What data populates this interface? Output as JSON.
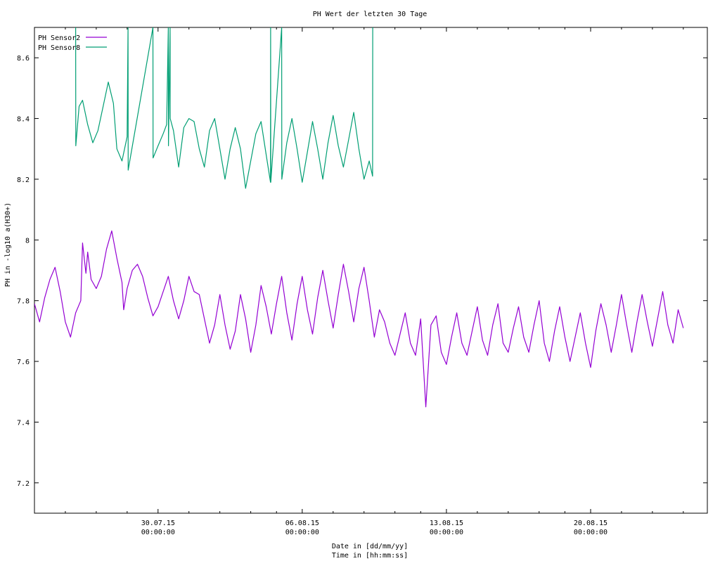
{
  "chart_data": {
    "type": "line",
    "title": "PH Wert der letzten 30 Tage",
    "xlabel_line1": "Date in [dd/mm/yy]",
    "xlabel_line2": "Time in [hh:mm:ss]",
    "ylabel": "PH in -log10 a(H30+)",
    "ylim": [
      7.1,
      8.7
    ],
    "xlim": [
      "2015-07-24 00:00",
      "2015-08-25 16:00"
    ],
    "y_ticks": [
      {
        "value": 7.2,
        "label": "7.2"
      },
      {
        "value": 7.4,
        "label": "7.4"
      },
      {
        "value": 7.6,
        "label": "7.6"
      },
      {
        "value": 7.8,
        "label": "7.8"
      },
      {
        "value": 8.0,
        "label": "8"
      },
      {
        "value": 8.2,
        "label": "8.2"
      },
      {
        "value": 8.4,
        "label": "8.4"
      },
      {
        "value": 8.6,
        "label": "8.6"
      }
    ],
    "x_ticks": [
      {
        "value": "2015-07-30 00:00",
        "date": "30.07.15",
        "time": "00:00:00"
      },
      {
        "value": "2015-08-06 00:00",
        "date": "06.08.15",
        "time": "00:00:00"
      },
      {
        "value": "2015-08-13 00:00",
        "date": "13.08.15",
        "time": "00:00:00"
      },
      {
        "value": "2015-08-20 00:00",
        "date": "20.08.15",
        "time": "00:00:00"
      }
    ],
    "x_minor_ticks": [
      "2015-07-25 12:00",
      "2015-07-27 00:00",
      "2015-07-28 12:00",
      "2015-07-31 12:00",
      "2015-08-02 00:00",
      "2015-08-03 12:00",
      "2015-08-04 18:00",
      "2015-08-07 12:00",
      "2015-08-09 00:00",
      "2015-08-10 12:00",
      "2015-08-11 18:00",
      "2015-08-14 12:00",
      "2015-08-16 00:00",
      "2015-08-17 12:00",
      "2015-08-18 18:00",
      "2015-08-21 12:00",
      "2015-08-23 00:00",
      "2015-08-24 12:00"
    ],
    "legend_position": "top-left",
    "grid": false,
    "series": [
      {
        "name": "PH Sensor2",
        "color": "#9400d3",
        "points": [
          [
            "2015-07-24 00:00",
            7.79
          ],
          [
            "2015-07-24 06:00",
            7.73
          ],
          [
            "2015-07-24 12:00",
            7.81
          ],
          [
            "2015-07-24 18:00",
            7.87
          ],
          [
            "2015-07-25 00:00",
            7.91
          ],
          [
            "2015-07-25 06:00",
            7.83
          ],
          [
            "2015-07-25 12:00",
            7.73
          ],
          [
            "2015-07-25 18:00",
            7.68
          ],
          [
            "2015-07-26 00:00",
            7.76
          ],
          [
            "2015-07-26 06:00",
            7.8
          ],
          [
            "2015-07-26 08:00",
            7.99
          ],
          [
            "2015-07-26 12:00",
            7.89
          ],
          [
            "2015-07-26 14:00",
            7.96
          ],
          [
            "2015-07-26 18:00",
            7.87
          ],
          [
            "2015-07-27 00:00",
            7.84
          ],
          [
            "2015-07-27 06:00",
            7.88
          ],
          [
            "2015-07-27 12:00",
            7.97
          ],
          [
            "2015-07-27 18:00",
            8.03
          ],
          [
            "2015-07-28 00:00",
            7.94
          ],
          [
            "2015-07-28 06:00",
            7.86
          ],
          [
            "2015-07-28 08:00",
            7.77
          ],
          [
            "2015-07-28 12:00",
            7.84
          ],
          [
            "2015-07-28 18:00",
            7.9
          ],
          [
            "2015-07-29 00:00",
            7.92
          ],
          [
            "2015-07-29 06:00",
            7.88
          ],
          [
            "2015-07-29 12:00",
            7.81
          ],
          [
            "2015-07-29 18:00",
            7.75
          ],
          [
            "2015-07-30 00:00",
            7.78
          ],
          [
            "2015-07-30 06:00",
            7.83
          ],
          [
            "2015-07-30 12:00",
            7.88
          ],
          [
            "2015-07-30 18:00",
            7.8
          ],
          [
            "2015-07-31 00:00",
            7.74
          ],
          [
            "2015-07-31 06:00",
            7.8
          ],
          [
            "2015-07-31 12:00",
            7.88
          ],
          [
            "2015-07-31 18:00",
            7.83
          ],
          [
            "2015-08-01 00:00",
            7.82
          ],
          [
            "2015-08-01 06:00",
            7.74
          ],
          [
            "2015-08-01 12:00",
            7.66
          ],
          [
            "2015-08-01 18:00",
            7.72
          ],
          [
            "2015-08-02 00:00",
            7.82
          ],
          [
            "2015-08-02 06:00",
            7.72
          ],
          [
            "2015-08-02 12:00",
            7.64
          ],
          [
            "2015-08-02 18:00",
            7.7
          ],
          [
            "2015-08-03 00:00",
            7.82
          ],
          [
            "2015-08-03 06:00",
            7.74
          ],
          [
            "2015-08-03 12:00",
            7.63
          ],
          [
            "2015-08-03 18:00",
            7.72
          ],
          [
            "2015-08-04 00:00",
            7.85
          ],
          [
            "2015-08-04 06:00",
            7.78
          ],
          [
            "2015-08-04 12:00",
            7.69
          ],
          [
            "2015-08-04 18:00",
            7.79
          ],
          [
            "2015-08-05 00:00",
            7.88
          ],
          [
            "2015-08-05 06:00",
            7.76
          ],
          [
            "2015-08-05 12:00",
            7.67
          ],
          [
            "2015-08-05 18:00",
            7.79
          ],
          [
            "2015-08-06 00:00",
            7.88
          ],
          [
            "2015-08-06 06:00",
            7.77
          ],
          [
            "2015-08-06 12:00",
            7.69
          ],
          [
            "2015-08-06 18:00",
            7.81
          ],
          [
            "2015-08-07 00:00",
            7.9
          ],
          [
            "2015-08-07 06:00",
            7.8
          ],
          [
            "2015-08-07 12:00",
            7.71
          ],
          [
            "2015-08-07 18:00",
            7.82
          ],
          [
            "2015-08-08 00:00",
            7.92
          ],
          [
            "2015-08-08 06:00",
            7.83
          ],
          [
            "2015-08-08 12:00",
            7.73
          ],
          [
            "2015-08-08 18:00",
            7.84
          ],
          [
            "2015-08-09 00:00",
            7.91
          ],
          [
            "2015-08-09 06:00",
            7.8
          ],
          [
            "2015-08-09 12:00",
            7.68
          ],
          [
            "2015-08-09 18:00",
            7.77
          ],
          [
            "2015-08-10 00:00",
            7.73
          ],
          [
            "2015-08-10 06:00",
            7.66
          ],
          [
            "2015-08-10 12:00",
            7.62
          ],
          [
            "2015-08-10 18:00",
            7.69
          ],
          [
            "2015-08-11 00:00",
            7.76
          ],
          [
            "2015-08-11 06:00",
            7.66
          ],
          [
            "2015-08-11 12:00",
            7.62
          ],
          [
            "2015-08-11 18:00",
            7.74
          ],
          [
            "2015-08-12 00:00",
            7.45
          ],
          [
            "2015-08-12 06:00",
            7.72
          ],
          [
            "2015-08-12 12:00",
            7.75
          ],
          [
            "2015-08-12 18:00",
            7.63
          ],
          [
            "2015-08-13 00:00",
            7.59
          ],
          [
            "2015-08-13 06:00",
            7.68
          ],
          [
            "2015-08-13 12:00",
            7.76
          ],
          [
            "2015-08-13 18:00",
            7.66
          ],
          [
            "2015-08-14 00:00",
            7.62
          ],
          [
            "2015-08-14 06:00",
            7.7
          ],
          [
            "2015-08-14 12:00",
            7.78
          ],
          [
            "2015-08-14 18:00",
            7.67
          ],
          [
            "2015-08-15 00:00",
            7.62
          ],
          [
            "2015-08-15 06:00",
            7.72
          ],
          [
            "2015-08-15 12:00",
            7.79
          ],
          [
            "2015-08-15 18:00",
            7.66
          ],
          [
            "2015-08-16 00:00",
            7.63
          ],
          [
            "2015-08-16 06:00",
            7.71
          ],
          [
            "2015-08-16 12:00",
            7.78
          ],
          [
            "2015-08-16 18:00",
            7.68
          ],
          [
            "2015-08-17 00:00",
            7.63
          ],
          [
            "2015-08-17 06:00",
            7.72
          ],
          [
            "2015-08-17 12:00",
            7.8
          ],
          [
            "2015-08-17 18:00",
            7.66
          ],
          [
            "2015-08-18 00:00",
            7.6
          ],
          [
            "2015-08-18 06:00",
            7.7
          ],
          [
            "2015-08-18 12:00",
            7.78
          ],
          [
            "2015-08-18 18:00",
            7.68
          ],
          [
            "2015-08-19 00:00",
            7.6
          ],
          [
            "2015-08-19 06:00",
            7.68
          ],
          [
            "2015-08-19 12:00",
            7.76
          ],
          [
            "2015-08-19 18:00",
            7.66
          ],
          [
            "2015-08-20 00:00",
            7.58
          ],
          [
            "2015-08-20 06:00",
            7.7
          ],
          [
            "2015-08-20 12:00",
            7.79
          ],
          [
            "2015-08-20 18:00",
            7.72
          ],
          [
            "2015-08-21 00:00",
            7.63
          ],
          [
            "2015-08-21 06:00",
            7.72
          ],
          [
            "2015-08-21 12:00",
            7.82
          ],
          [
            "2015-08-21 18:00",
            7.72
          ],
          [
            "2015-08-22 00:00",
            7.63
          ],
          [
            "2015-08-22 06:00",
            7.73
          ],
          [
            "2015-08-22 12:00",
            7.82
          ],
          [
            "2015-08-22 18:00",
            7.73
          ],
          [
            "2015-08-23 00:00",
            7.65
          ],
          [
            "2015-08-23 06:00",
            7.74
          ],
          [
            "2015-08-23 12:00",
            7.83
          ],
          [
            "2015-08-23 18:00",
            7.72
          ],
          [
            "2015-08-24 00:00",
            7.66
          ],
          [
            "2015-08-24 06:00",
            7.77
          ],
          [
            "2015-08-24 12:00",
            7.71
          ]
        ]
      },
      {
        "name": "PH Sensor8",
        "color": "#009e73",
        "points": [
          [
            "2015-07-26 00:00",
            8.7
          ],
          [
            "2015-07-26 00:10",
            8.31
          ],
          [
            "2015-07-26 04:00",
            8.44
          ],
          [
            "2015-07-26 08:00",
            8.46
          ],
          [
            "2015-07-26 14:00",
            8.38
          ],
          [
            "2015-07-26 20:00",
            8.32
          ],
          [
            "2015-07-27 02:00",
            8.36
          ],
          [
            "2015-07-27 08:00",
            8.44
          ],
          [
            "2015-07-27 14:00",
            8.52
          ],
          [
            "2015-07-27 20:00",
            8.45
          ],
          [
            "2015-07-28 00:00",
            8.3
          ],
          [
            "2015-07-28 06:00",
            8.26
          ],
          [
            "2015-07-28 12:00",
            8.34
          ],
          [
            "2015-07-28 13:00",
            8.7
          ],
          [
            "2015-07-28 13:10",
            8.23
          ],
          [
            "2015-07-29 18:00",
            8.7
          ],
          [
            "2015-07-29 18:10",
            8.27
          ],
          [
            "2015-07-30 00:00",
            8.31
          ],
          [
            "2015-07-30 06:00",
            8.35
          ],
          [
            "2015-07-30 10:00",
            8.38
          ],
          [
            "2015-07-30 12:00",
            8.7
          ],
          [
            "2015-07-30 12:10",
            8.31
          ],
          [
            "2015-07-30 14:00",
            8.7
          ],
          [
            "2015-07-30 14:10",
            8.4
          ],
          [
            "2015-07-30 18:00",
            8.36
          ],
          [
            "2015-07-31 00:00",
            8.24
          ],
          [
            "2015-07-31 06:00",
            8.37
          ],
          [
            "2015-07-31 12:00",
            8.4
          ],
          [
            "2015-07-31 18:00",
            8.39
          ],
          [
            "2015-08-01 00:00",
            8.3
          ],
          [
            "2015-08-01 06:00",
            8.24
          ],
          [
            "2015-08-01 12:00",
            8.36
          ],
          [
            "2015-08-01 18:00",
            8.4
          ],
          [
            "2015-08-02 00:00",
            8.3
          ],
          [
            "2015-08-02 06:00",
            8.2
          ],
          [
            "2015-08-02 12:00",
            8.3
          ],
          [
            "2015-08-02 18:00",
            8.37
          ],
          [
            "2015-08-03 00:00",
            8.3
          ],
          [
            "2015-08-03 06:00",
            8.17
          ],
          [
            "2015-08-03 12:00",
            8.26
          ],
          [
            "2015-08-03 18:00",
            8.35
          ],
          [
            "2015-08-04 00:00",
            8.39
          ],
          [
            "2015-08-04 06:00",
            8.28
          ],
          [
            "2015-08-04 11:00",
            8.19
          ],
          [
            "2015-08-04 11:10",
            8.7
          ],
          [
            "2015-08-04 11:20",
            8.19
          ],
          [
            "2015-08-05 00:00",
            8.7
          ],
          [
            "2015-08-05 00:10",
            8.2
          ],
          [
            "2015-08-05 06:00",
            8.32
          ],
          [
            "2015-08-05 12:00",
            8.4
          ],
          [
            "2015-08-05 18:00",
            8.3
          ],
          [
            "2015-08-06 00:00",
            8.19
          ],
          [
            "2015-08-06 06:00",
            8.29
          ],
          [
            "2015-08-06 12:00",
            8.39
          ],
          [
            "2015-08-06 18:00",
            8.3
          ],
          [
            "2015-08-07 00:00",
            8.2
          ],
          [
            "2015-08-07 06:00",
            8.32
          ],
          [
            "2015-08-07 12:00",
            8.41
          ],
          [
            "2015-08-07 18:00",
            8.31
          ],
          [
            "2015-08-08 00:00",
            8.24
          ],
          [
            "2015-08-08 06:00",
            8.33
          ],
          [
            "2015-08-08 12:00",
            8.42
          ],
          [
            "2015-08-08 18:00",
            8.3
          ],
          [
            "2015-08-09 00:00",
            8.2
          ],
          [
            "2015-08-09 06:00",
            8.26
          ],
          [
            "2015-08-09 10:00",
            8.21
          ],
          [
            "2015-08-09 10:10",
            8.7
          ]
        ]
      }
    ]
  }
}
